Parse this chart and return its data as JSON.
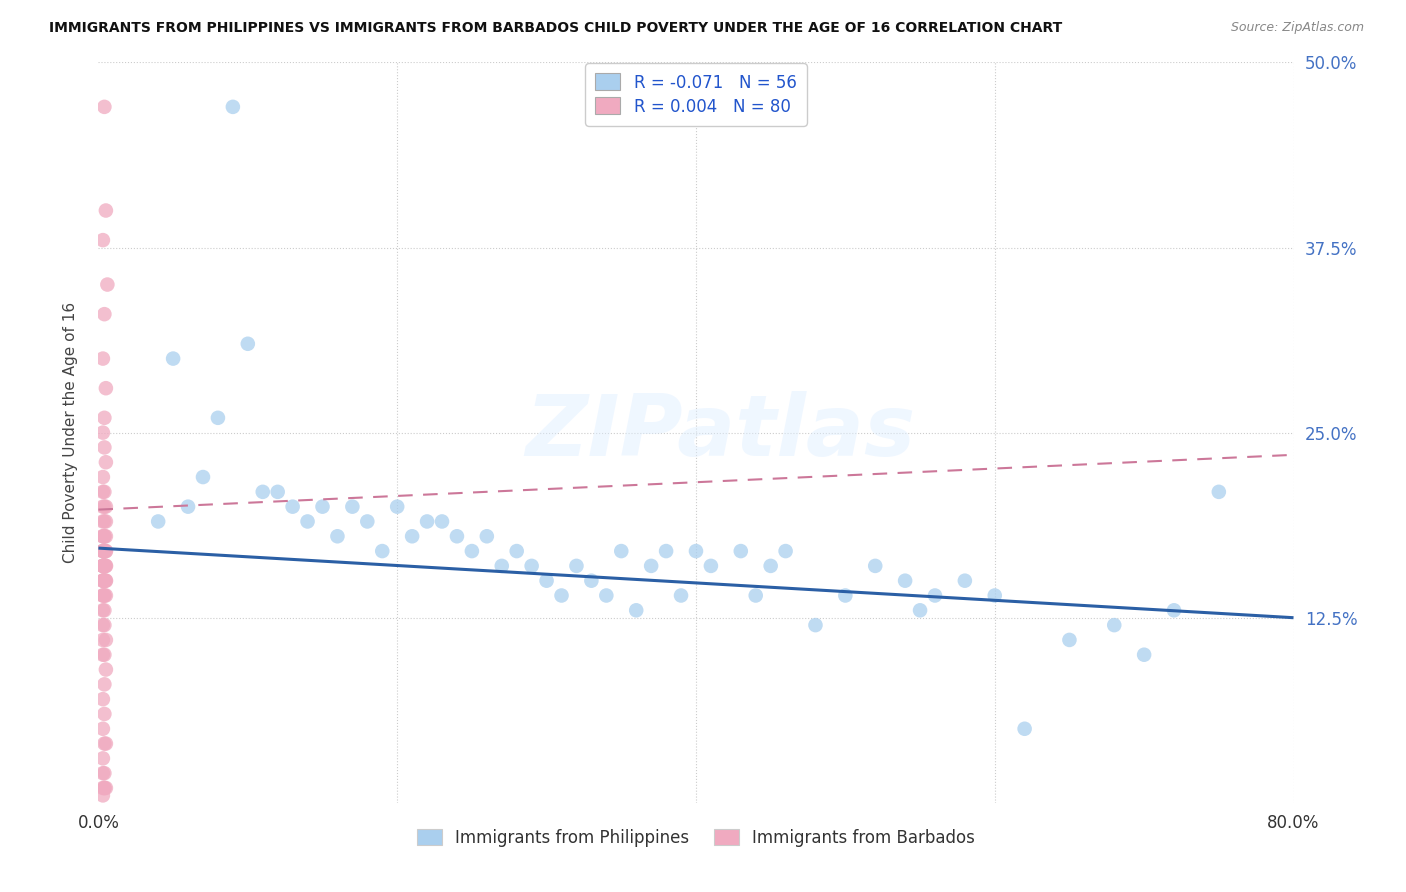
{
  "title": "IMMIGRANTS FROM PHILIPPINES VS IMMIGRANTS FROM BARBADOS CHILD POVERTY UNDER THE AGE OF 16 CORRELATION CHART",
  "source": "Source: ZipAtlas.com",
  "ylabel": "Child Poverty Under the Age of 16",
  "philippines_R": -0.071,
  "philippines_N": 56,
  "barbados_R": 0.004,
  "barbados_N": 80,
  "philippines_color": "#aacfee",
  "barbados_color": "#f0aac0",
  "philippines_line_color": "#2b5fa5",
  "barbados_line_color": "#cc7799",
  "background_color": "#ffffff",
  "watermark": "ZIPatlas",
  "phil_trend_start": 0.172,
  "phil_trend_end": 0.125,
  "barb_trend_start": 0.198,
  "barb_trend_end": 0.235,
  "xlim": [
    0,
    0.8
  ],
  "ylim": [
    0,
    0.5
  ],
  "yticks": [
    0,
    0.125,
    0.25,
    0.375,
    0.5
  ],
  "ytick_labels_right": [
    "",
    "12.5%",
    "25.0%",
    "37.5%",
    "50.0%"
  ],
  "xtick_labels": [
    "0.0%",
    "",
    "",
    "",
    "80.0%"
  ],
  "legend_text_1": "R = -0.071   N = 56",
  "legend_text_2": "R = 0.004   N = 80",
  "bottom_label_1": "Immigrants from Philippines",
  "bottom_label_2": "Immigrants from Barbados",
  "philippines_x": [
    0.09,
    0.05,
    0.08,
    0.1,
    0.06,
    0.07,
    0.04,
    0.11,
    0.13,
    0.12,
    0.15,
    0.14,
    0.17,
    0.16,
    0.18,
    0.2,
    0.19,
    0.22,
    0.21,
    0.23,
    0.24,
    0.25,
    0.26,
    0.27,
    0.28,
    0.29,
    0.3,
    0.32,
    0.31,
    0.33,
    0.35,
    0.34,
    0.36,
    0.38,
    0.37,
    0.4,
    0.39,
    0.41,
    0.43,
    0.45,
    0.44,
    0.46,
    0.48,
    0.5,
    0.52,
    0.54,
    0.55,
    0.56,
    0.58,
    0.6,
    0.62,
    0.65,
    0.68,
    0.7,
    0.72,
    0.75
  ],
  "philippines_y": [
    0.47,
    0.3,
    0.26,
    0.31,
    0.2,
    0.22,
    0.19,
    0.21,
    0.2,
    0.21,
    0.2,
    0.19,
    0.2,
    0.18,
    0.19,
    0.2,
    0.17,
    0.19,
    0.18,
    0.19,
    0.18,
    0.17,
    0.18,
    0.16,
    0.17,
    0.16,
    0.15,
    0.16,
    0.14,
    0.15,
    0.17,
    0.14,
    0.13,
    0.17,
    0.16,
    0.17,
    0.14,
    0.16,
    0.17,
    0.16,
    0.14,
    0.17,
    0.12,
    0.14,
    0.16,
    0.15,
    0.13,
    0.14,
    0.15,
    0.14,
    0.05,
    0.11,
    0.12,
    0.1,
    0.13,
    0.21
  ],
  "barbados_x": [
    0.004,
    0.005,
    0.003,
    0.006,
    0.004,
    0.003,
    0.005,
    0.004,
    0.003,
    0.004,
    0.005,
    0.003,
    0.004,
    0.003,
    0.005,
    0.004,
    0.003,
    0.005,
    0.004,
    0.003,
    0.004,
    0.005,
    0.003,
    0.004,
    0.003,
    0.005,
    0.004,
    0.003,
    0.004,
    0.003,
    0.004,
    0.005,
    0.003,
    0.004,
    0.003,
    0.005,
    0.004,
    0.003,
    0.004,
    0.003,
    0.004,
    0.005,
    0.003,
    0.004,
    0.003,
    0.005,
    0.004,
    0.003,
    0.004,
    0.003,
    0.004,
    0.005,
    0.003,
    0.004,
    0.003,
    0.005,
    0.004,
    0.003,
    0.004,
    0.003,
    0.004,
    0.005,
    0.003,
    0.004,
    0.003,
    0.005,
    0.004,
    0.003,
    0.004,
    0.003,
    0.004,
    0.005,
    0.003,
    0.004,
    0.003,
    0.005,
    0.004,
    0.003,
    0.004,
    0.003
  ],
  "barbados_y": [
    0.47,
    0.4,
    0.38,
    0.35,
    0.33,
    0.3,
    0.28,
    0.26,
    0.25,
    0.24,
    0.23,
    0.22,
    0.21,
    0.21,
    0.2,
    0.2,
    0.2,
    0.19,
    0.19,
    0.19,
    0.18,
    0.18,
    0.18,
    0.18,
    0.18,
    0.17,
    0.17,
    0.17,
    0.17,
    0.17,
    0.17,
    0.17,
    0.17,
    0.16,
    0.16,
    0.16,
    0.16,
    0.16,
    0.16,
    0.16,
    0.16,
    0.16,
    0.16,
    0.16,
    0.15,
    0.15,
    0.15,
    0.15,
    0.15,
    0.15,
    0.15,
    0.15,
    0.14,
    0.14,
    0.14,
    0.14,
    0.14,
    0.13,
    0.13,
    0.12,
    0.12,
    0.11,
    0.11,
    0.1,
    0.1,
    0.09,
    0.08,
    0.07,
    0.06,
    0.05,
    0.04,
    0.04,
    0.03,
    0.02,
    0.02,
    0.01,
    0.01,
    0.01,
    0.01,
    0.005
  ]
}
